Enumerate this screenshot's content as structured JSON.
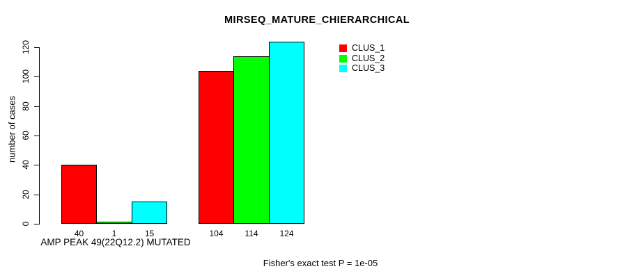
{
  "chart_data": {
    "type": "bar",
    "title": "MIRSEQ_MATURE_CHIERARCHICAL",
    "ylabel": "number of cases",
    "xlabel": "AMP PEAK 49(22Q12.2) MUTATED",
    "categories": [
      "AMP PEAK 49(22Q12.2) MUTATED",
      ""
    ],
    "series": [
      {
        "name": "CLUS_1",
        "color": "#ff0000",
        "values": [
          40,
          104
        ]
      },
      {
        "name": "CLUS_2",
        "color": "#00ff00",
        "values": [
          1,
          114
        ]
      },
      {
        "name": "CLUS_3",
        "color": "#00ffff",
        "values": [
          15,
          124
        ]
      }
    ],
    "bar_value_labels": [
      [
        "40",
        "1",
        "15"
      ],
      [
        "104",
        "114",
        "124"
      ]
    ],
    "ylim": [
      0,
      120
    ],
    "yticks": [
      0,
      20,
      40,
      60,
      80,
      100,
      120
    ],
    "legend_position": "top-right",
    "legend_entries": [
      "CLUS_1",
      "CLUS_2",
      "CLUS_3"
    ],
    "annotation": "Fisher's exact test P = 1e-05",
    "grid": false,
    "background_color": "#ffffff",
    "axis_color": "#000000"
  }
}
